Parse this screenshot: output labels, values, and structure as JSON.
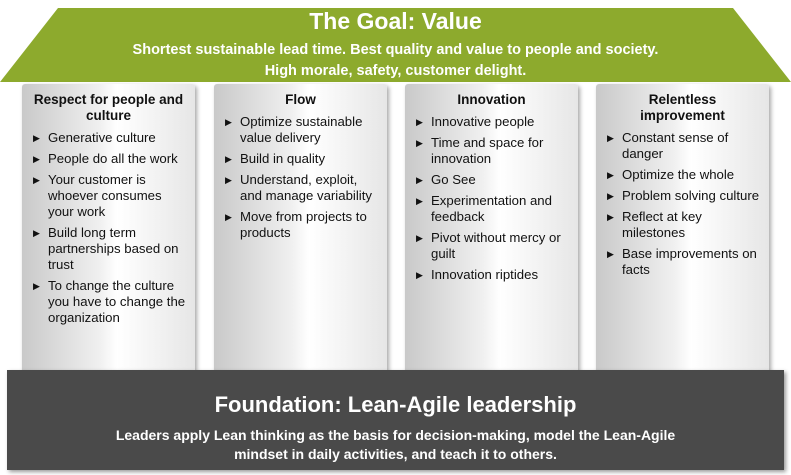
{
  "colors": {
    "roof": "#8daa2d",
    "foundation": "#4a4a4a",
    "pillar": "#eeeeee"
  },
  "roof": {
    "title": "The Goal: Value",
    "line1": "Shortest sustainable lead time. Best quality and value to people and society.",
    "line2": "High morale, safety, customer delight."
  },
  "pillars": [
    {
      "title": "Respect for people and culture",
      "items": [
        "Generative culture",
        "People do all the work",
        "Your customer is whoever consumes your work",
        "Build long term partnerships based on trust",
        "To change the culture you have to change the organization"
      ]
    },
    {
      "title": "Flow",
      "items": [
        "Optimize sustainable value delivery",
        "Build in quality",
        "Understand, exploit, and manage variability",
        "Move from projects to products"
      ]
    },
    {
      "title": "Innovation",
      "items": [
        "Innovative people",
        "Time and space for innovation",
        "Go See",
        "Experimentation and feedback",
        "Pivot without mercy or guilt",
        "Innovation riptides"
      ]
    },
    {
      "title": "Relentless improvement",
      "items": [
        "Constant sense of danger",
        "Optimize the whole",
        "Problem solving culture",
        "Reflect at key milestones",
        "Base improvements on facts"
      ]
    }
  ],
  "foundation": {
    "title": "Foundation: Lean-Agile leadership",
    "line1": "Leaders apply Lean thinking as the basis for decision-making, model the Lean-Agile",
    "line2": "mindset in daily activities, and teach it to others."
  }
}
